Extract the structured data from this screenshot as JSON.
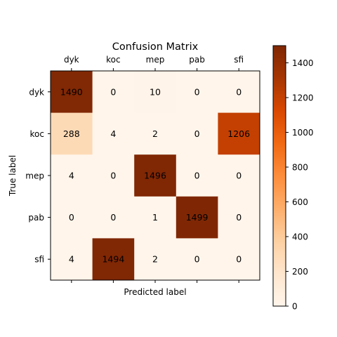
{
  "chart_data": {
    "type": "heatmap",
    "title": "Confusion Matrix",
    "xlabel": "Predicted label",
    "ylabel": "True label",
    "x_categories": [
      "dyk",
      "koc",
      "mep",
      "pab",
      "sfi"
    ],
    "y_categories": [
      "dyk",
      "koc",
      "mep",
      "pab",
      "sfi"
    ],
    "values": [
      [
        1490,
        0,
        10,
        0,
        0
      ],
      [
        288,
        4,
        2,
        0,
        1206
      ],
      [
        4,
        0,
        1496,
        0,
        0
      ],
      [
        0,
        0,
        1,
        1499,
        0
      ],
      [
        4,
        1494,
        2,
        0,
        0
      ]
    ],
    "color_range": [
      0,
      1499
    ],
    "colormap": "Oranges",
    "colorbar_ticks": [
      0,
      200,
      400,
      600,
      800,
      1000,
      1200,
      1400
    ],
    "x_tick_position": "top"
  }
}
